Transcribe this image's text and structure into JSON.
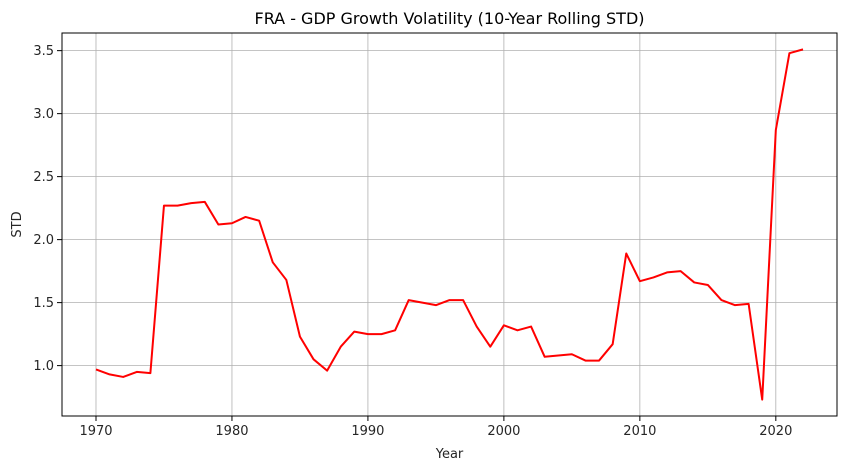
{
  "chart_data": {
    "type": "line",
    "title": "FRA - GDP Growth Volatility (10-Year Rolling STD)",
    "xlabel": "Year",
    "ylabel": "STD",
    "xlim": [
      1967.5,
      2024.5
    ],
    "ylim": [
      0.6,
      3.64
    ],
    "xticks": [
      1970,
      1980,
      1990,
      2000,
      2010,
      2020
    ],
    "yticks": [
      1.0,
      1.5,
      2.0,
      2.5,
      3.0,
      3.5
    ],
    "xtick_labels": [
      "1970",
      "1980",
      "1990",
      "2000",
      "2010",
      "2020"
    ],
    "ytick_labels": [
      "1.0",
      "1.5",
      "2.0",
      "2.5",
      "3.0",
      "3.5"
    ],
    "grid": true,
    "line_color": "#ff0000",
    "x": [
      1970,
      1971,
      1972,
      1973,
      1974,
      1975,
      1976,
      1977,
      1978,
      1979,
      1980,
      1981,
      1982,
      1983,
      1984,
      1985,
      1986,
      1987,
      1988,
      1989,
      1990,
      1991,
      1992,
      1993,
      1994,
      1995,
      1996,
      1997,
      1998,
      1999,
      2000,
      2001,
      2002,
      2003,
      2004,
      2005,
      2006,
      2007,
      2008,
      2009,
      2010,
      2011,
      2012,
      2013,
      2014,
      2015,
      2016,
      2017,
      2018,
      2019,
      2020,
      2021,
      2022
    ],
    "y": [
      0.97,
      0.93,
      0.91,
      0.95,
      0.94,
      2.27,
      2.27,
      2.29,
      2.3,
      2.12,
      2.13,
      2.18,
      2.15,
      1.82,
      1.68,
      1.23,
      1.05,
      0.96,
      1.15,
      1.27,
      1.25,
      1.25,
      1.28,
      1.52,
      1.5,
      1.48,
      1.52,
      1.52,
      1.31,
      1.15,
      1.32,
      1.28,
      1.31,
      1.07,
      1.08,
      1.09,
      1.04,
      1.04,
      1.17,
      1.89,
      1.67,
      1.7,
      1.74,
      1.75,
      1.66,
      1.64,
      1.52,
      1.48,
      1.49,
      0.73,
      2.87,
      3.48,
      3.51
    ]
  }
}
